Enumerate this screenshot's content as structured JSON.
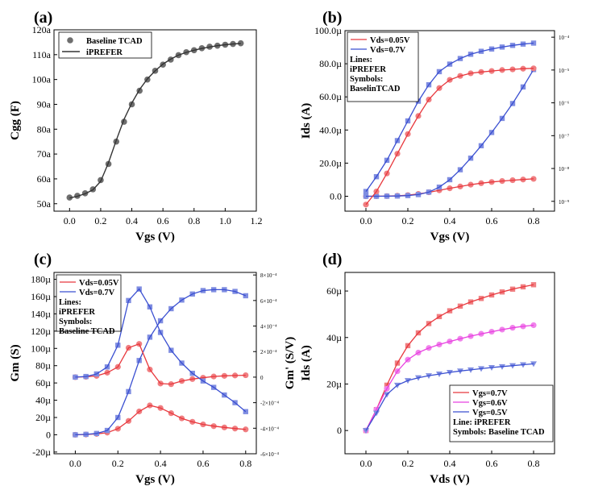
{
  "chart_data": [
    {
      "panel": "(a)",
      "type": "line",
      "xlabel": "Vgs (V)",
      "ylabel": "Cgg (F)",
      "xlim": [
        -0.1,
        1.2
      ],
      "ylim": [
        47,
        120
      ],
      "x_ticks": [
        "0.0",
        "0.2",
        "0.4",
        "0.6",
        "0.8",
        "1.0",
        "1.2"
      ],
      "y_ticks": [
        "50a",
        "60a",
        "70a",
        "80a",
        "90a",
        "100a",
        "110a",
        "120a"
      ],
      "legend_position": "top-left",
      "legend": [
        "Baseline TCAD",
        "iPREFER"
      ],
      "series": [
        {
          "name": "Baseline TCAD",
          "marker": "circle",
          "color": "#6e6e6e",
          "x": [
            0.0,
            0.05,
            0.1,
            0.15,
            0.2,
            0.25,
            0.3,
            0.35,
            0.4,
            0.45,
            0.5,
            0.55,
            0.6,
            0.65,
            0.7,
            0.75,
            0.8,
            0.85,
            0.9,
            0.95,
            1.0,
            1.05,
            1.1
          ],
          "y": [
            52.5,
            53.2,
            54.2,
            55.8,
            59.5,
            66.0,
            75.0,
            83.0,
            90.0,
            95.5,
            100.0,
            103.5,
            106.0,
            108.0,
            109.8,
            111.0,
            111.8,
            112.6,
            113.2,
            113.6,
            114.0,
            114.3,
            114.6
          ]
        },
        {
          "name": "iPREFER",
          "line": "solid",
          "color": "#333333",
          "x": [
            0.0,
            0.05,
            0.1,
            0.15,
            0.2,
            0.25,
            0.3,
            0.35,
            0.4,
            0.45,
            0.5,
            0.55,
            0.6,
            0.65,
            0.7,
            0.75,
            0.8,
            0.85,
            0.9,
            0.95,
            1.0,
            1.05,
            1.1
          ],
          "y": [
            52.3,
            53.0,
            54.0,
            55.6,
            59.0,
            66.5,
            75.5,
            84.0,
            90.5,
            96.0,
            100.2,
            103.5,
            106.2,
            108.2,
            109.8,
            110.9,
            111.8,
            112.5,
            113.1,
            113.6,
            114.0,
            114.3,
            114.5
          ]
        }
      ]
    },
    {
      "panel": "(b)",
      "type": "line",
      "xlabel": "Vgs (V)",
      "ylabel": "Ids (A)",
      "xlim": [
        -0.1,
        0.9
      ],
      "ylim": [
        -9,
        100
      ],
      "x_ticks": [
        "0.0",
        "0.2",
        "0.4",
        "0.6",
        "0.8"
      ],
      "y_ticks": [
        "0.0",
        "20.0µ",
        "40.0µ",
        "60.0µ",
        "80.0µ",
        "100.0µ"
      ],
      "y2_scale": "log",
      "y2_ticks": [
        "10⁻⁹",
        "10⁻⁸",
        "10⁻⁷",
        "10⁻⁶",
        "10⁻⁵",
        "10⁻⁴"
      ],
      "legend_position": "top-left",
      "legend": [
        "Vds=0.05V",
        "Vds=0.7V"
      ],
      "legend_note": [
        "Lines:",
        "iPREFER",
        "Symbols:",
        "BaselinTCAD"
      ],
      "series": [
        {
          "name": "Vds=0.05V (linear)",
          "color": "#e8383d",
          "marker": "circle",
          "x": [
            0.0,
            0.05,
            0.1,
            0.15,
            0.2,
            0.25,
            0.3,
            0.35,
            0.4,
            0.45,
            0.5,
            0.55,
            0.6,
            0.65,
            0.7,
            0.75,
            0.8
          ],
          "y": [
            0.0,
            0.05,
            0.1,
            0.3,
            0.7,
            1.4,
            2.4,
            3.6,
            4.8,
            5.9,
            7.0,
            7.9,
            8.6,
            9.2,
            9.7,
            10.1,
            10.5
          ]
        },
        {
          "name": "Vds=0.7V (linear)",
          "color": "#3a4fd1",
          "marker": "square",
          "x": [
            0.0,
            0.05,
            0.1,
            0.15,
            0.2,
            0.25,
            0.3,
            0.35,
            0.4,
            0.45,
            0.5,
            0.55,
            0.6,
            0.65,
            0.7,
            0.75,
            0.8
          ],
          "y": [
            0.0,
            0.0,
            0.05,
            0.15,
            0.4,
            1.0,
            2.5,
            5.5,
            10.0,
            16.0,
            23.0,
            30.5,
            38.5,
            47.0,
            56.0,
            66.0,
            76.5
          ]
        },
        {
          "name": "Vds=0.05V (log)",
          "color": "#e8383d",
          "marker": "circle",
          "x": [
            0.0,
            0.05,
            0.1,
            0.15,
            0.2,
            0.25,
            0.3,
            0.35,
            0.4,
            0.45,
            0.5,
            0.55,
            0.6,
            0.65,
            0.7,
            0.75,
            0.8
          ],
          "y_log10": [
            -9.1,
            -8.7,
            -8.15,
            -7.55,
            -6.95,
            -6.4,
            -5.9,
            -5.55,
            -5.3,
            -5.18,
            -5.1,
            -5.06,
            -5.03,
            -5.0,
            -4.98,
            -4.96,
            -4.95
          ]
        },
        {
          "name": "Vds=0.7V (log)",
          "color": "#3a4fd1",
          "marker": "square",
          "x": [
            0.0,
            0.05,
            0.1,
            0.15,
            0.2,
            0.25,
            0.3,
            0.35,
            0.4,
            0.45,
            0.5,
            0.55,
            0.6,
            0.65,
            0.7,
            0.75,
            0.8
          ],
          "y_log10": [
            -8.7,
            -8.25,
            -7.75,
            -7.15,
            -6.55,
            -5.95,
            -5.45,
            -5.05,
            -4.82,
            -4.65,
            -4.52,
            -4.43,
            -4.36,
            -4.3,
            -4.25,
            -4.21,
            -4.18
          ]
        }
      ]
    },
    {
      "panel": "(c)",
      "type": "line",
      "xlabel": "Vgs (V)",
      "ylabel": "Gm (S)",
      "y2label": "Gm' (S/V)",
      "xlim": [
        -0.1,
        0.85
      ],
      "ylim": [
        -22,
        188
      ],
      "x_ticks": [
        "0.0",
        "0.2",
        "0.4",
        "0.6",
        "0.8"
      ],
      "y_ticks": [
        "-20µ",
        "0",
        "20µ",
        "40µ",
        "60µ",
        "80µ",
        "100µ",
        "120µ",
        "140µ",
        "160µ",
        "180µ"
      ],
      "y2_ticks": [
        "-6×10⁻⁴",
        "-4×10⁻⁴",
        "-2×10⁻⁴",
        "0",
        "2×10⁻⁴",
        "4×10⁻⁴",
        "6×10⁻⁴",
        "8×10⁻⁴"
      ],
      "legend_position": "top-left",
      "legend": [
        "Vds=0.05V",
        "Vds=0.7V"
      ],
      "legend_note": [
        "Lines:",
        "iPREFER",
        "Symbols:",
        "Baseline TCAD"
      ],
      "series": [
        {
          "name": "Gm Vds=0.05V",
          "color": "#e8383d",
          "marker": "circle",
          "x": [
            0.0,
            0.05,
            0.1,
            0.15,
            0.2,
            0.25,
            0.3,
            0.35,
            0.4,
            0.45,
            0.5,
            0.55,
            0.6,
            0.65,
            0.7,
            0.75,
            0.8
          ],
          "y": [
            0.0,
            0.3,
            1.0,
            2.5,
            7.0,
            16.0,
            27.0,
            34.0,
            31.0,
            25.0,
            19.0,
            15.0,
            12.0,
            10.0,
            8.5,
            7.2,
            6.2
          ]
        },
        {
          "name": "Gm Vds=0.7V",
          "color": "#3a4fd1",
          "marker": "square",
          "x": [
            0.0,
            0.05,
            0.1,
            0.15,
            0.2,
            0.25,
            0.3,
            0.35,
            0.4,
            0.45,
            0.5,
            0.55,
            0.6,
            0.65,
            0.7,
            0.75,
            0.8
          ],
          "y": [
            0.0,
            0.5,
            1.5,
            5.0,
            20.0,
            50.0,
            86.0,
            113.0,
            132.0,
            146.0,
            156.0,
            163.0,
            167.0,
            168.0,
            168.0,
            166.0,
            161.0
          ]
        },
        {
          "name": "Gm' Vds=0.05V",
          "color": "#e8383d",
          "marker": "circle",
          "x": [
            0.0,
            0.05,
            0.1,
            0.15,
            0.2,
            0.25,
            0.3,
            0.35,
            0.4,
            0.45,
            0.5,
            0.55,
            0.6,
            0.65,
            0.7,
            0.75,
            0.8
          ],
          "y2_e4": [
            0.0,
            0.03,
            0.1,
            0.35,
            0.8,
            2.3,
            2.6,
            0.6,
            -0.5,
            -0.55,
            -0.3,
            -0.15,
            -0.05,
            0.05,
            0.1,
            0.13,
            0.15
          ]
        },
        {
          "name": "Gm' Vds=0.7V",
          "color": "#3a4fd1",
          "marker": "square",
          "x": [
            0.0,
            0.05,
            0.1,
            0.15,
            0.2,
            0.25,
            0.3,
            0.35,
            0.4,
            0.45,
            0.5,
            0.55,
            0.6,
            0.65,
            0.7,
            0.75,
            0.8
          ],
          "y2_e4": [
            0.0,
            0.05,
            0.25,
            0.8,
            2.5,
            6.0,
            6.9,
            5.5,
            3.5,
            2.1,
            1.1,
            0.3,
            -0.3,
            -0.8,
            -1.4,
            -2.0,
            -2.7
          ]
        }
      ]
    },
    {
      "panel": "(d)",
      "type": "line",
      "xlabel": "Vds (V)",
      "ylabel": "Ids (A)",
      "xlim": [
        -0.1,
        0.9
      ],
      "ylim": [
        -10,
        68
      ],
      "x_ticks": [
        "0.0",
        "0.2",
        "0.4",
        "0.6",
        "0.8"
      ],
      "y_ticks": [
        "0",
        "20µ",
        "40µ",
        "60µ"
      ],
      "legend_position": "bottom-right",
      "legend": [
        "Vgs=0.7V",
        "Vgs=0.6V",
        "Vgs=0.5V"
      ],
      "legend_note": [
        "Line: iPREFER",
        "Symbols: Baseline TCAD"
      ],
      "series": [
        {
          "name": "Vgs=0.7V",
          "color": "#e8383d",
          "marker": "square",
          "x": [
            0.0,
            0.05,
            0.1,
            0.15,
            0.2,
            0.25,
            0.3,
            0.35,
            0.4,
            0.45,
            0.5,
            0.55,
            0.6,
            0.65,
            0.7,
            0.75,
            0.8
          ],
          "y": [
            0.0,
            9.0,
            19.5,
            29.0,
            36.5,
            42.0,
            46.0,
            49.0,
            51.5,
            53.5,
            55.3,
            56.8,
            58.3,
            59.6,
            60.8,
            61.8,
            62.7
          ]
        },
        {
          "name": "Vgs=0.6V",
          "color": "#e840e0",
          "marker": "circle",
          "x": [
            0.0,
            0.05,
            0.1,
            0.15,
            0.2,
            0.25,
            0.3,
            0.35,
            0.4,
            0.45,
            0.5,
            0.55,
            0.6,
            0.65,
            0.7,
            0.75,
            0.8
          ],
          "y": [
            0.0,
            9.0,
            18.0,
            25.5,
            30.5,
            33.5,
            35.5,
            37.0,
            38.3,
            39.5,
            40.6,
            41.6,
            42.5,
            43.4,
            44.2,
            44.8,
            45.3
          ]
        },
        {
          "name": "Vgs=0.5V",
          "color": "#3a4fd1",
          "marker": "triangle-down",
          "x": [
            0.0,
            0.05,
            0.1,
            0.15,
            0.2,
            0.25,
            0.3,
            0.35,
            0.4,
            0.45,
            0.5,
            0.55,
            0.6,
            0.65,
            0.7,
            0.75,
            0.8
          ],
          "y": [
            0.0,
            7.5,
            15.5,
            19.5,
            21.5,
            22.7,
            23.6,
            24.3,
            25.0,
            25.6,
            26.1,
            26.6,
            27.1,
            27.5,
            27.9,
            28.3,
            28.7
          ]
        }
      ]
    }
  ]
}
